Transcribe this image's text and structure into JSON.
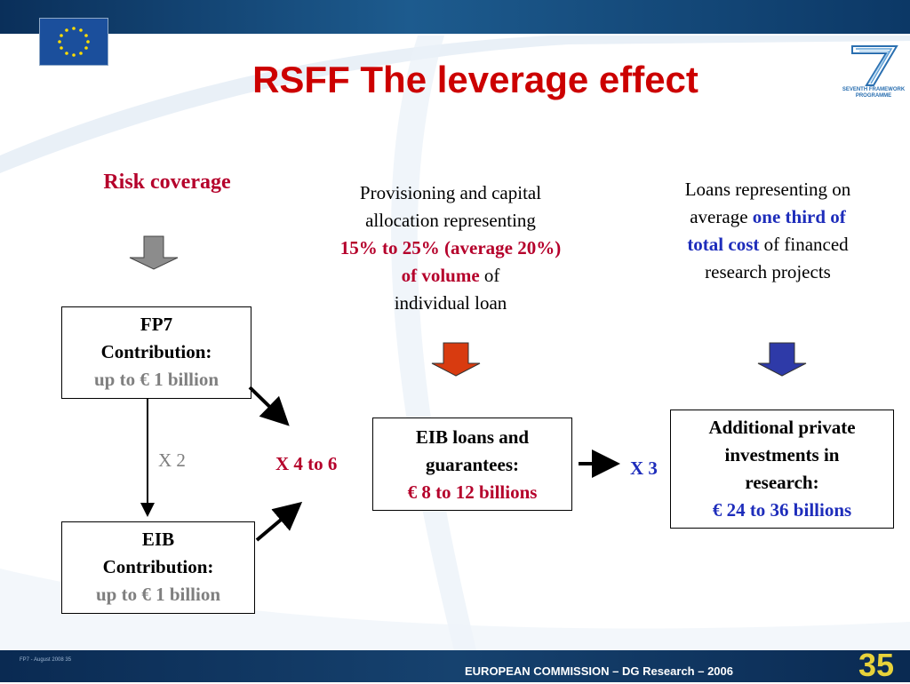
{
  "slide": {
    "title": "RSFF The leverage effect",
    "page_number": "35",
    "footer_left": "FP7 - August 2008   35",
    "footer_center": "EUROPEAN COMMISSION – DG Research – 2006",
    "logo_text_line1": "SEVENTH FRAMEWORK",
    "logo_text_line2": "PROGRAMME"
  },
  "columns": {
    "risk": {
      "heading": "Risk coverage"
    },
    "provisioning": {
      "line1": "Provisioning and capital",
      "line2": "allocation representing",
      "highlight1": "15% to 25% (average 20%)",
      "highlight2": "of volume",
      "after_highlight": " of",
      "line5": "individual loan"
    },
    "loans": {
      "line1": "Loans representing on",
      "line2_pre": "average ",
      "highlight1": "one third of",
      "highlight2": "total cost",
      "line3_post": " of financed",
      "line4": "research projects"
    }
  },
  "boxes": {
    "fp7": {
      "line1": "FP7",
      "line2": "Contribution:",
      "line3": "up to € 1 billion"
    },
    "eib": {
      "line1": "EIB",
      "line2": "Contribution:",
      "line3": "up to € 1 billion"
    },
    "eib_loans": {
      "line1": "EIB loans and",
      "line2": "guarantees:",
      "line3": "€ 8 to 12 billions"
    },
    "private": {
      "line1": "Additional private",
      "line2": "investments in",
      "line3": "research:",
      "line4": "€ 24 to 36 billions"
    }
  },
  "multipliers": {
    "x2": "X 2",
    "x4to6": "X 4 to 6",
    "x3": "X 3"
  },
  "colors": {
    "title_red": "#cc0000",
    "highlight_red": "#b5002b",
    "highlight_blue": "#1e2dbb",
    "arrow_grey": "#8c8c8c",
    "arrow_red": "#d83b10",
    "arrow_blue": "#2e3aa8"
  }
}
